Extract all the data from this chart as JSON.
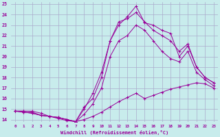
{
  "xlabel": "Windchill (Refroidissement éolien,°C)",
  "bg_color": "#c8ecec",
  "grid_color": "#aaaacc",
  "line_color": "#990099",
  "xlim": [
    -0.5,
    23.5
  ],
  "ylim": [
    13.8,
    25.2
  ],
  "xticks": [
    0,
    1,
    2,
    3,
    4,
    5,
    6,
    7,
    8,
    9,
    10,
    11,
    12,
    13,
    14,
    15,
    16,
    17,
    18,
    19,
    20,
    21,
    22,
    23
  ],
  "yticks": [
    14,
    15,
    16,
    17,
    18,
    19,
    20,
    21,
    22,
    23,
    24,
    25
  ],
  "series": [
    {
      "x": [
        0,
        1,
        2,
        3,
        4,
        5,
        6,
        7,
        8,
        9,
        10,
        11,
        12,
        13,
        14,
        15,
        16,
        17,
        18,
        19,
        20,
        21,
        22,
        23
      ],
      "y": [
        14.8,
        14.8,
        14.8,
        14.6,
        14.3,
        14.1,
        13.9,
        13.8,
        14.0,
        14.3,
        14.7,
        15.2,
        15.7,
        16.1,
        16.5,
        16.0,
        16.3,
        16.6,
        16.9,
        17.1,
        17.3,
        17.5,
        17.4,
        17.0
      ]
    },
    {
      "x": [
        0,
        1,
        2,
        3,
        4,
        5,
        6,
        7,
        8,
        9,
        10,
        11,
        12,
        13,
        14,
        15,
        16,
        17,
        18,
        19,
        20,
        21,
        22,
        23
      ],
      "y": [
        14.8,
        14.8,
        14.7,
        14.4,
        14.3,
        14.2,
        14.0,
        13.8,
        14.5,
        15.5,
        17.0,
        20.0,
        21.5,
        22.0,
        23.0,
        22.5,
        21.5,
        20.5,
        19.8,
        19.5,
        20.5,
        18.5,
        17.8,
        17.2
      ]
    },
    {
      "x": [
        0,
        1,
        2,
        3,
        4,
        5,
        6,
        7,
        8,
        9,
        10,
        11,
        12,
        13,
        14,
        15,
        16,
        17,
        18,
        19,
        20,
        21,
        22,
        23
      ],
      "y": [
        14.8,
        14.7,
        14.6,
        14.4,
        14.3,
        14.2,
        14.0,
        13.8,
        15.0,
        16.5,
        18.5,
        21.5,
        23.3,
        23.6,
        24.2,
        23.3,
        22.5,
        22.0,
        21.5,
        20.5,
        21.2,
        19.0,
        18.0,
        17.5
      ]
    },
    {
      "x": [
        0,
        1,
        2,
        3,
        4,
        5,
        6,
        7,
        8,
        9,
        10,
        11,
        12,
        13,
        14,
        15,
        16,
        17,
        18,
        19,
        20,
        21,
        22,
        23
      ],
      "y": [
        14.8,
        14.7,
        14.6,
        14.4,
        14.3,
        14.2,
        14.0,
        13.8,
        15.2,
        16.0,
        18.0,
        21.5,
        23.0,
        23.8,
        24.8,
        23.2,
        23.0,
        22.5,
        22.2,
        20.0,
        21.0,
        19.0,
        18.0,
        17.5
      ]
    }
  ]
}
